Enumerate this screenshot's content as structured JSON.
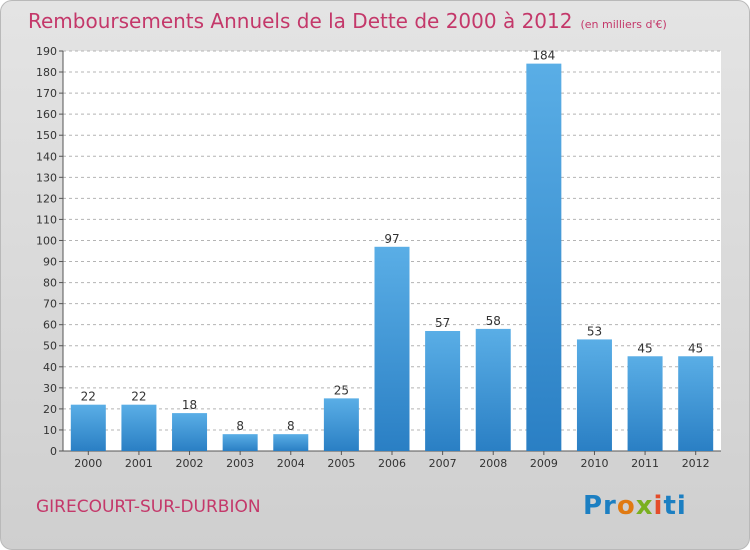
{
  "title": "Remboursements Annuels de la Dette de 2000 à 2012",
  "title_unit": "(en milliers d'€)",
  "place": "GIRECOURT-SUR-DURBION",
  "logo": {
    "p1": "Pr",
    "p2": "o",
    "p3": "x",
    "p4": "i",
    "p5": "ti"
  },
  "colors": {
    "bar_light": "#5aaee6",
    "bar_dark": "#2a7fc4",
    "title": "#c4386a",
    "grid": "#b4b4b4"
  },
  "chart_data": {
    "type": "bar",
    "title": "Remboursements Annuels de la Dette de 2000 à 2012",
    "subtitle": "(en milliers d'€)",
    "categories": [
      "2000",
      "2001",
      "2002",
      "2003",
      "2004",
      "2005",
      "2006",
      "2007",
      "2008",
      "2009",
      "2010",
      "2011",
      "2012"
    ],
    "values": [
      22,
      22,
      18,
      8,
      8,
      25,
      97,
      57,
      58,
      184,
      53,
      45,
      45
    ],
    "ylim": [
      0,
      190
    ],
    "yticks": [
      0,
      10,
      20,
      30,
      40,
      50,
      60,
      70,
      80,
      90,
      100,
      110,
      120,
      130,
      140,
      150,
      160,
      170,
      180,
      190
    ],
    "grid": true,
    "xlabel": "",
    "ylabel": ""
  }
}
